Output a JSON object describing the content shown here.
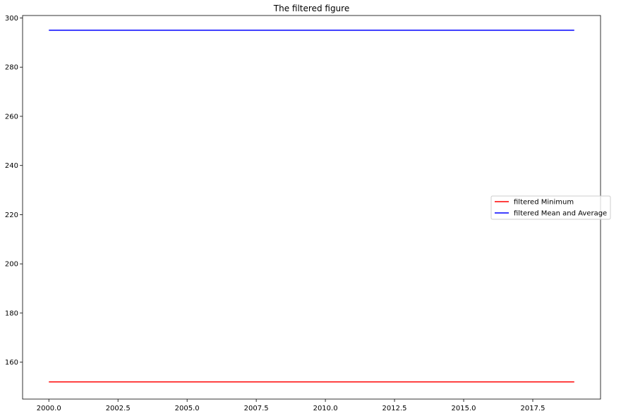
{
  "chart_data": {
    "type": "line",
    "title": "The filtered figure",
    "xlabel": "",
    "ylabel": "",
    "xlim": [
      1999.05,
      2019.95
    ],
    "ylim": [
      145,
      301
    ],
    "xticks": [
      2000.0,
      2002.5,
      2005.0,
      2007.5,
      2010.0,
      2012.5,
      2015.0,
      2017.5
    ],
    "xtick_labels": [
      "2000.0",
      "2002.5",
      "2005.0",
      "2007.5",
      "2010.0",
      "2012.5",
      "2015.0",
      "2017.5"
    ],
    "yticks": [
      160,
      180,
      200,
      220,
      240,
      260,
      280,
      300
    ],
    "ytick_labels": [
      "160",
      "180",
      "200",
      "220",
      "240",
      "260",
      "280",
      "300"
    ],
    "grid": false,
    "legend_position": "center-right",
    "series": [
      {
        "name": "filtered Minimum",
        "color": "#ff0000",
        "x": [
          2000,
          2019
        ],
        "y": [
          152,
          152
        ]
      },
      {
        "name": "filtered Mean and Average",
        "color": "#0000ff",
        "x": [
          2000,
          2019
        ],
        "y": [
          295,
          295
        ]
      }
    ]
  }
}
